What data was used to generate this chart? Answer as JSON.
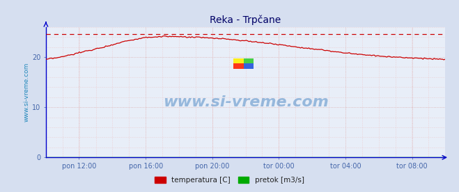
{
  "title": "Reka - Trpčane",
  "background_color": "#d6dff0",
  "plot_bg_color": "#e8eef8",
  "grid_color_major": "#ddaaaa",
  "grid_color_minor": "#eecccc",
  "axis_color": "#0000cc",
  "title_color": "#000066",
  "ylabel_text": "www.si-vreme.com",
  "ylabel_color": "#2288bb",
  "watermark": "www.si-vreme.com",
  "xtick_labels": [
    "pon 12:00",
    "pon 16:00",
    "pon 20:00",
    "tor 00:00",
    "tor 04:00",
    "tor 08:00"
  ],
  "xtick_positions_norm": [
    0.083,
    0.25,
    0.417,
    0.583,
    0.75,
    0.917
  ],
  "yticks": [
    0,
    10,
    20
  ],
  "ylim": [
    0,
    26
  ],
  "n_points": 288,
  "temp_max_line": 24.5,
  "temp_color": "#cc0000",
  "pretok_color": "#00aa00",
  "legend_labels": [
    "temperatura [C]",
    "pretok [m3/s]"
  ],
  "legend_colors": [
    "#cc0000",
    "#00aa00"
  ],
  "temp_profile": {
    "x_knots": [
      0,
      0.04,
      0.08,
      0.12,
      0.16,
      0.2,
      0.25,
      0.3,
      0.38,
      0.45,
      0.55,
      0.65,
      0.75,
      0.85,
      1.0
    ],
    "y_knots": [
      19.5,
      20.0,
      20.8,
      21.5,
      22.3,
      23.2,
      23.9,
      24.1,
      23.9,
      23.6,
      22.8,
      21.8,
      20.8,
      20.1,
      19.5
    ]
  }
}
